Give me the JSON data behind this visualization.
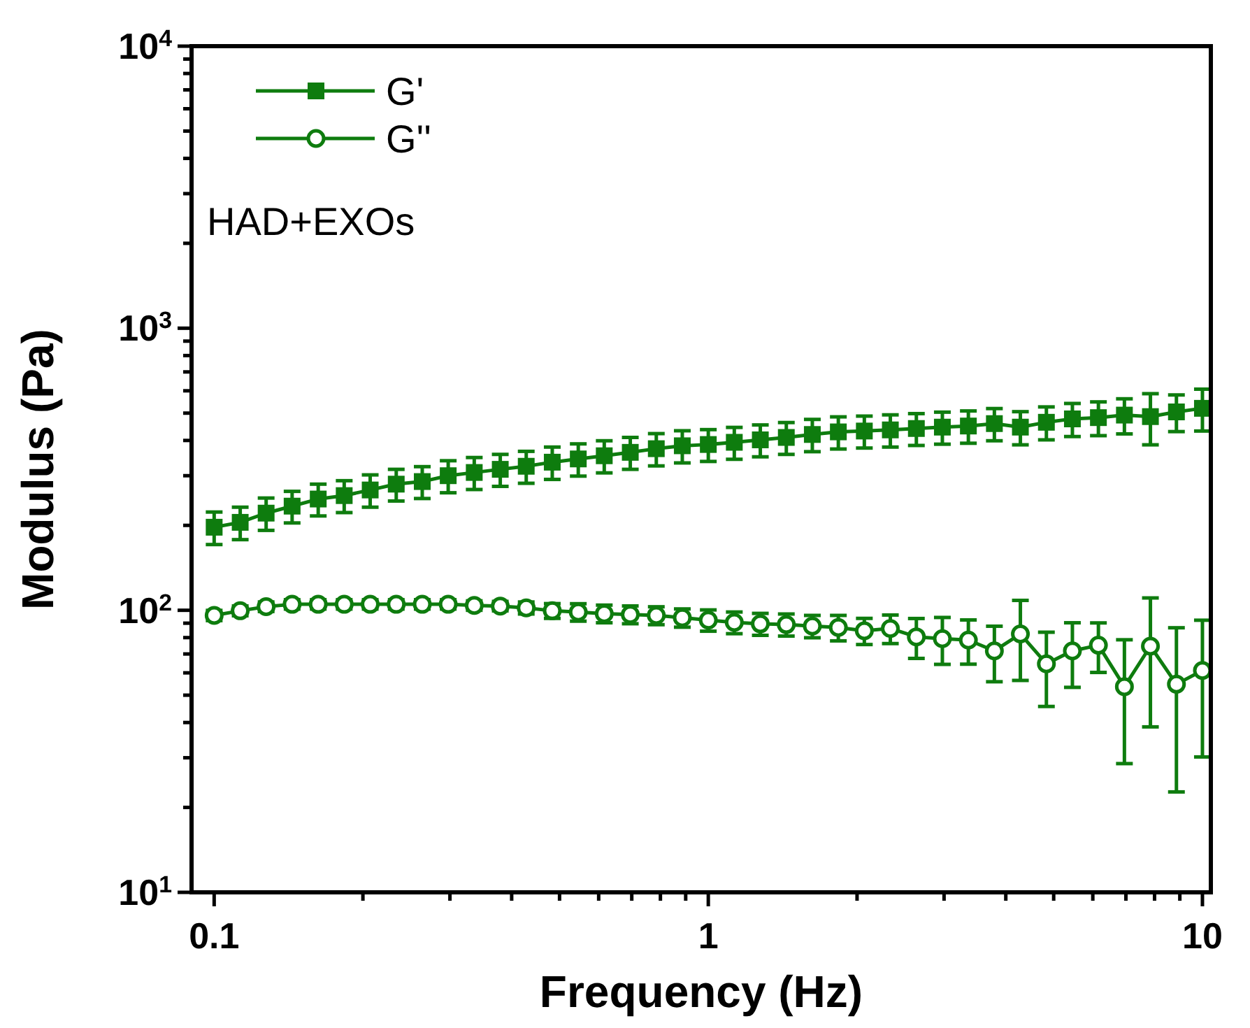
{
  "chart_data": {
    "type": "line",
    "xlabel": "Frequency (Hz)",
    "ylabel": "Modulus (Pa)",
    "log": "xy",
    "xlim": [
      0.09,
      10.4
    ],
    "ylim": [
      10,
      10000
    ],
    "xticks": [
      0.1,
      {
        "value": 0.2,
        "label": null
      },
      {
        "value": 0.3,
        "label": null
      },
      {
        "value": 0.4,
        "label": null
      },
      {
        "value": 0.5,
        "label": null
      },
      {
        "value": 0.6,
        "label": null
      },
      {
        "value": 0.7,
        "label": null
      },
      {
        "value": 0.8,
        "label": null
      },
      {
        "value": 0.9,
        "label": null
      },
      1,
      {
        "value": 2,
        "label": null
      },
      {
        "value": 3,
        "label": null
      },
      {
        "value": 4,
        "label": null
      },
      {
        "value": 5,
        "label": null
      },
      {
        "value": 6,
        "label": null
      },
      {
        "value": 7,
        "label": null
      },
      {
        "value": 8,
        "label": null
      },
      {
        "value": 9,
        "label": null
      },
      10
    ],
    "yticks": [
      {
        "value": 10,
        "label": "10$^{1}$"
      },
      {
        "value": 20,
        "label": null
      },
      {
        "value": 30,
        "label": null
      },
      {
        "value": 40,
        "label": null
      },
      {
        "value": 50,
        "label": null
      },
      {
        "value": 60,
        "label": null
      },
      {
        "value": 70,
        "label": null
      },
      {
        "value": 80,
        "label": null
      },
      {
        "value": 90,
        "label": null
      },
      {
        "value": 100,
        "label": "10$^{2}$"
      },
      {
        "value": 200,
        "label": null
      },
      {
        "value": 300,
        "label": null
      },
      {
        "value": 400,
        "label": null
      },
      {
        "value": 500,
        "label": null
      },
      {
        "value": 600,
        "label": null
      },
      {
        "value": 700,
        "label": null
      },
      {
        "value": 800,
        "label": null
      },
      {
        "value": 900,
        "label": null
      },
      {
        "value": 1000,
        "label": "10$^{3}$"
      },
      {
        "value": 2000,
        "label": null
      },
      {
        "value": 3000,
        "label": null
      },
      {
        "value": 4000,
        "label": null
      },
      {
        "value": 5000,
        "label": null
      },
      {
        "value": 6000,
        "label": null
      },
      {
        "value": 7000,
        "label": null
      },
      {
        "value": 8000,
        "label": null
      },
      {
        "value": 9000,
        "label": null
      },
      {
        "value": 10000,
        "label": "10$^{4}$"
      }
    ],
    "grid": false,
    "legend": "top left",
    "line_style": "solid",
    "annotations": [
      "HAD+EXOs"
    ],
    "series": [
      {
        "name": "G'",
        "color": "#0e7c0e",
        "marker": "square",
        "x": [
          0.1,
          0.1129,
          0.1274,
          0.1438,
          0.1624,
          0.1833,
          0.2069,
          0.2336,
          0.2637,
          0.2976,
          0.336,
          0.3793,
          0.4281,
          0.4833,
          0.5456,
          0.6158,
          0.6952,
          0.7848,
          0.8859,
          1,
          1.1288,
          1.2743,
          1.4384,
          1.6238,
          1.833,
          2.0691,
          2.3357,
          2.6367,
          2.9764,
          3.3598,
          3.7927,
          4.2813,
          4.8329,
          5.4556,
          6.1585,
          6.9519,
          7.8476,
          8.8587,
          10
        ],
        "values": [
          197,
          205,
          221,
          234,
          248,
          255,
          267,
          280,
          286,
          300,
          308,
          316,
          324,
          335,
          344,
          353,
          363,
          374,
          383,
          387,
          394,
          402,
          410,
          420,
          429,
          432,
          436,
          441,
          446,
          450,
          459,
          446,
          464,
          477,
          482,
          492,
          486,
          505,
          520
        ],
        "errors": [
          26,
          27,
          29,
          30,
          32,
          33,
          35,
          36,
          37,
          39,
          40,
          41,
          42,
          44,
          45,
          46,
          47,
          49,
          50,
          50,
          51,
          52,
          53,
          55,
          56,
          56,
          57,
          57,
          58,
          59,
          60,
          60,
          62,
          64,
          66,
          70,
          100,
          75,
          88
        ]
      },
      {
        "name": "G''",
        "color": "#0e7c0e",
        "marker": "circle",
        "x": [
          0.1,
          0.1129,
          0.1274,
          0.1438,
          0.1624,
          0.1833,
          0.2069,
          0.2336,
          0.2637,
          0.2976,
          0.336,
          0.3793,
          0.4281,
          0.4833,
          0.5456,
          0.6158,
          0.6952,
          0.7848,
          0.8859,
          1,
          1.1288,
          1.2743,
          1.4384,
          1.6238,
          1.833,
          2.0691,
          2.3357,
          2.6367,
          2.9764,
          3.3598,
          3.7927,
          4.2813,
          4.8329,
          5.4556,
          6.1585,
          6.9519,
          7.8476,
          8.8587,
          10
        ],
        "values": [
          95.9,
          99.6,
          103,
          105,
          105,
          105,
          105,
          105,
          105,
          105,
          104,
          103.5,
          102,
          99.6,
          98.5,
          97.3,
          96.6,
          95.9,
          94.1,
          92.3,
          90.6,
          89.5,
          89,
          87.9,
          86.9,
          84.6,
          86.2,
          80.5,
          79.3,
          78.4,
          71.8,
          82.4,
          64.6,
          71.8,
          75.2,
          53.6,
          74.6,
          54.7,
          61.2
        ],
        "errors": [
          4,
          4,
          4,
          4,
          4,
          4,
          4,
          4,
          4,
          4,
          4,
          4,
          5,
          6,
          7,
          7,
          7,
          7,
          7,
          8,
          8,
          8,
          8,
          8,
          9,
          9,
          10,
          13,
          15,
          14,
          16,
          26,
          19,
          18.5,
          15,
          25,
          36,
          32,
          31
        ]
      }
    ]
  }
}
